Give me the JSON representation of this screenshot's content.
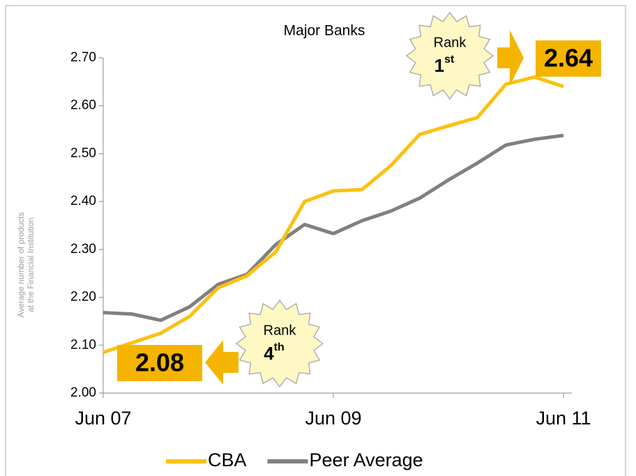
{
  "chart_data": {
    "type": "line",
    "title": "Major Banks",
    "y_label": [
      "Average number of products",
      "at the Financial Institution"
    ],
    "categories": [
      "Jun 07",
      null,
      null,
      null,
      null,
      null,
      null,
      null,
      "Jun 09",
      null,
      null,
      null,
      null,
      null,
      null,
      null,
      "Jun 11"
    ],
    "series": [
      {
        "name": "CBA",
        "color": "#fcc010",
        "values": [
          2.085,
          2.105,
          2.125,
          2.16,
          2.22,
          2.245,
          2.295,
          2.4,
          2.422,
          2.425,
          2.475,
          2.54,
          2.558,
          2.575,
          2.645,
          2.66,
          2.64
        ]
      },
      {
        "name": "Peer Average",
        "color": "#808080",
        "values": [
          2.168,
          2.165,
          2.152,
          2.18,
          2.227,
          2.248,
          2.31,
          2.352,
          2.333,
          2.36,
          2.38,
          2.407,
          2.445,
          2.48,
          2.518,
          2.53,
          2.538
        ]
      }
    ],
    "ylim": [
      2.0,
      2.7
    ],
    "yticks": [
      {
        "value": 2.0,
        "label": "2.00"
      },
      {
        "value": 2.1,
        "label": "2.10"
      },
      {
        "value": 2.2,
        "label": "2.20"
      },
      {
        "value": 2.3,
        "label": "2.30"
      },
      {
        "value": 2.4,
        "label": "2.40"
      },
      {
        "value": 2.5,
        "label": "2.50"
      },
      {
        "value": 2.6,
        "label": "2.60"
      },
      {
        "value": 2.7,
        "label": "2.70"
      }
    ],
    "legend": "bottom",
    "annotations": [
      {
        "rank_label": "Rank",
        "rank": "1",
        "rank_suffix": "st",
        "value_label": "2.64",
        "direction": "right"
      },
      {
        "rank_label": "Rank",
        "rank": "4",
        "rank_suffix": "th",
        "value_label": "2.08",
        "direction": "left"
      }
    ]
  }
}
